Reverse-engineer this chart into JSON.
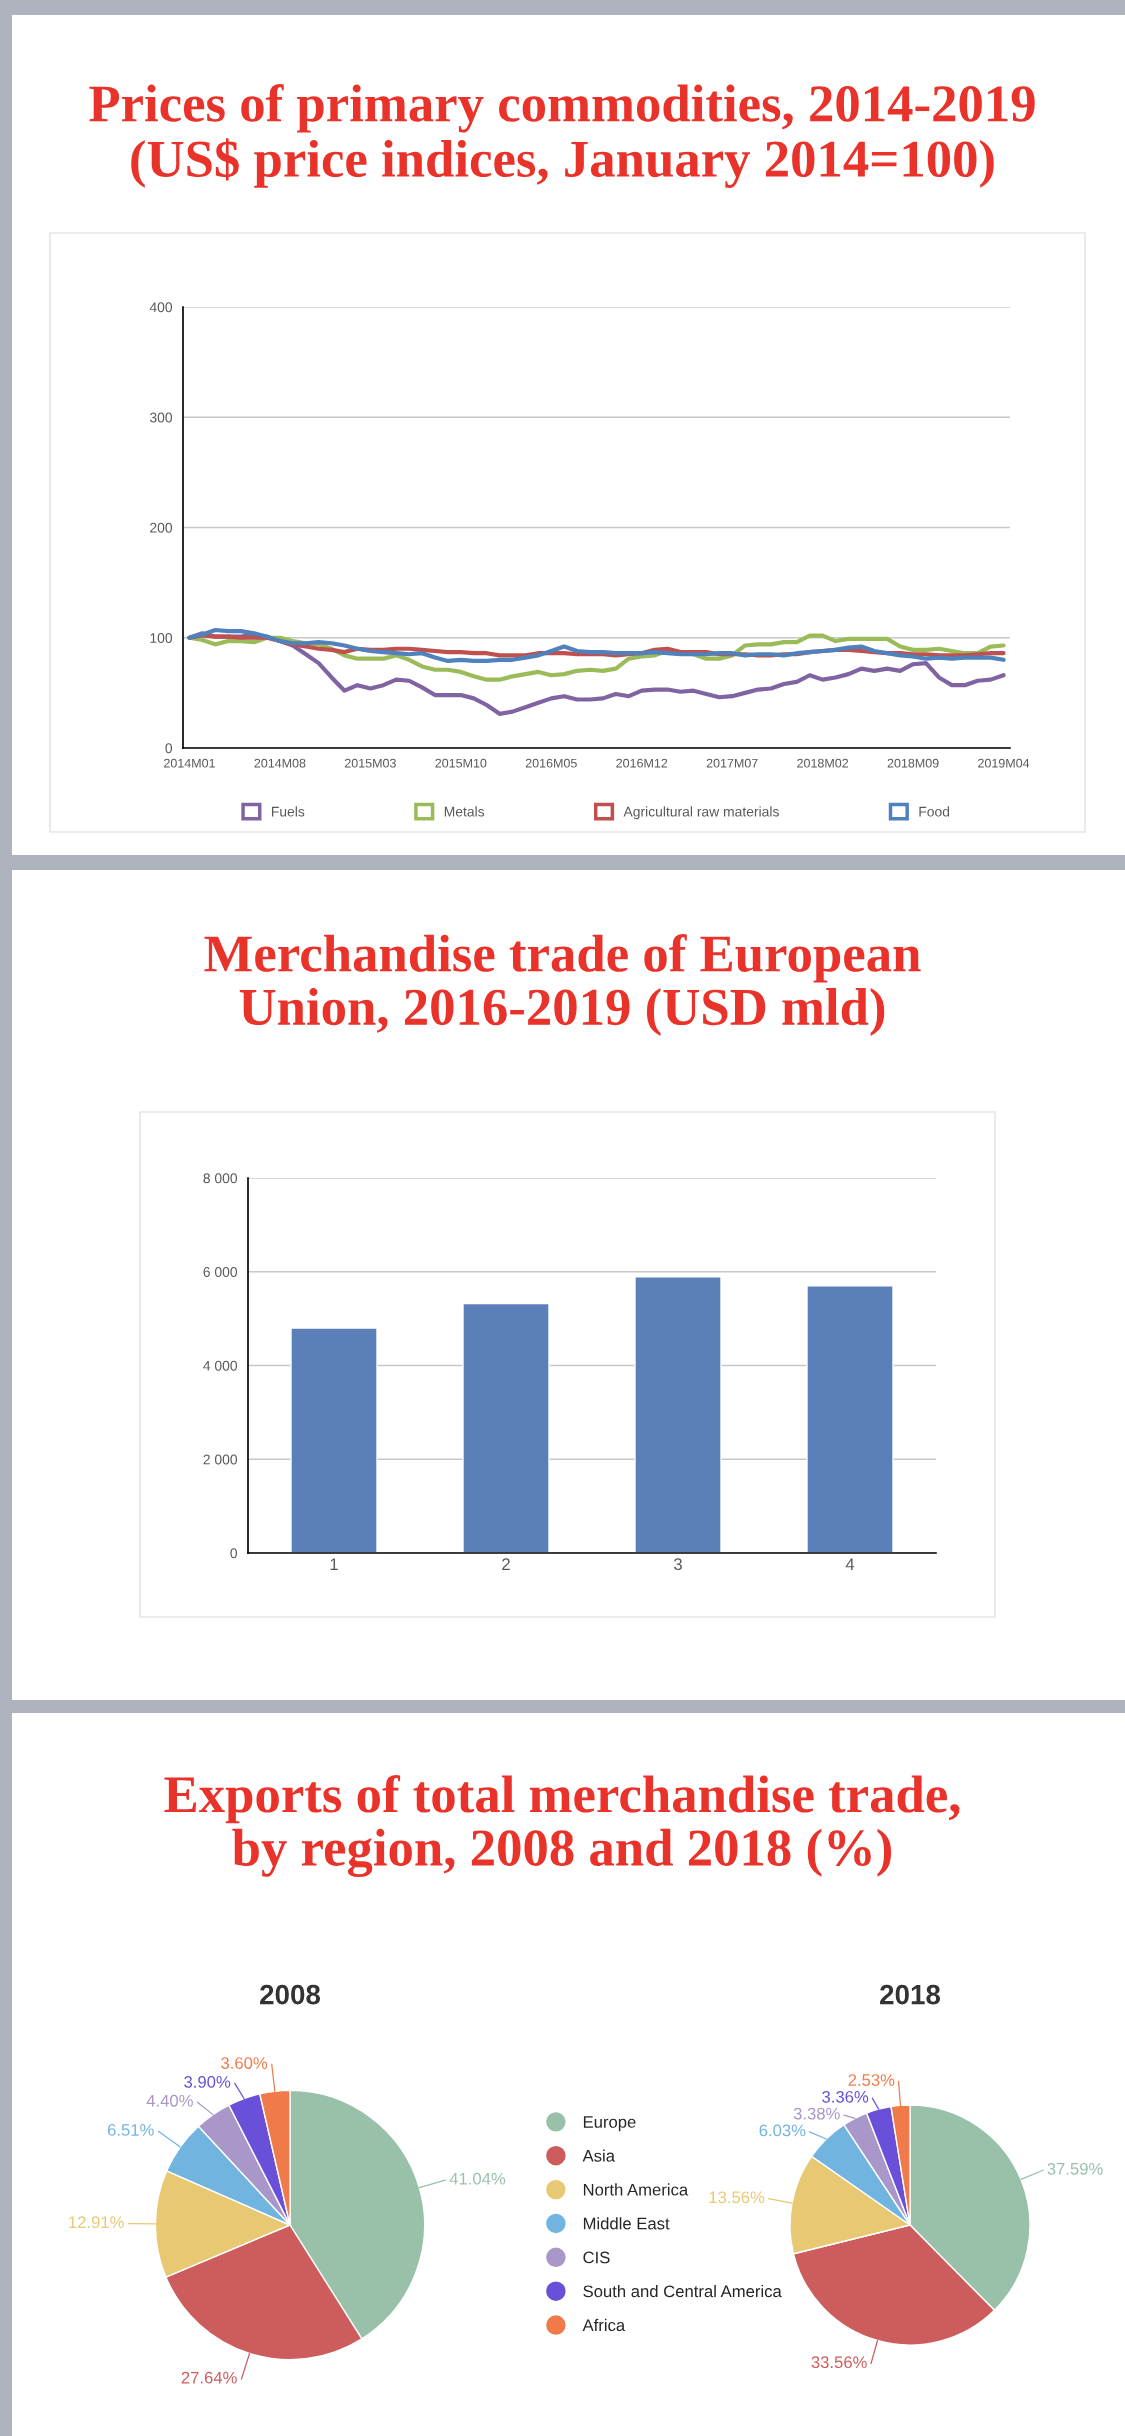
{
  "chart_data": [
    {
      "type": "line",
      "title": "Prices of primary commodities, 2014-2019\n(US$ price indices, January 2014=100)",
      "categories": [
        "2014M01",
        null,
        null,
        null,
        null,
        null,
        null,
        "2014M08",
        null,
        null,
        null,
        null,
        null,
        null,
        "2015M03",
        null,
        null,
        null,
        null,
        null,
        null,
        "2015M10",
        null,
        null,
        null,
        null,
        null,
        null,
        "2016M05",
        null,
        null,
        null,
        null,
        null,
        null,
        "2016M12",
        null,
        null,
        null,
        null,
        null,
        null,
        "2017M07",
        null,
        null,
        null,
        null,
        null,
        null,
        "2018M02",
        null,
        null,
        null,
        null,
        null,
        null,
        "2018M09",
        null,
        null,
        null,
        null,
        null,
        null,
        "2019M04"
      ],
      "series": [
        {
          "name": "Fuels",
          "color": "#8064a2",
          "values": [
            100,
            104,
            101,
            101,
            101,
            103,
            101,
            97,
            93,
            85,
            77,
            64,
            52,
            57,
            54,
            57,
            62,
            61,
            55,
            48,
            48,
            48,
            45,
            39,
            31,
            33,
            37,
            41,
            45,
            47,
            44,
            44,
            45,
            49,
            47,
            52,
            53,
            53,
            51,
            52,
            49,
            46,
            47,
            50,
            53,
            54,
            58,
            60,
            66,
            62,
            64,
            67,
            72,
            70,
            72,
            70,
            76,
            77,
            64,
            57,
            57,
            61,
            62,
            66
          ]
        },
        {
          "name": "Metals",
          "color": "#9bbb59",
          "values": [
            100,
            98,
            94,
            97,
            97,
            96,
            100,
            100,
            97,
            95,
            94,
            90,
            84,
            81,
            81,
            81,
            84,
            80,
            74,
            71,
            71,
            69,
            65,
            62,
            62,
            65,
            67,
            69,
            66,
            67,
            70,
            71,
            70,
            72,
            81,
            83,
            84,
            88,
            87,
            85,
            81,
            81,
            84,
            93,
            94,
            94,
            96,
            96,
            102,
            102,
            97,
            99,
            99,
            99,
            99,
            92,
            89,
            89,
            90,
            88,
            86,
            86,
            92,
            93
          ]
        },
        {
          "name": "Agricultural raw materials",
          "color": "#c0504d",
          "values": [
            100,
            102,
            101,
            101,
            100,
            100,
            100,
            97,
            94,
            92,
            90,
            89,
            87,
            90,
            89,
            89,
            90,
            90,
            89,
            88,
            87,
            87,
            86,
            86,
            84,
            84,
            84,
            86,
            86,
            86,
            85,
            85,
            85,
            84,
            85,
            86,
            89,
            90,
            87,
            87,
            87,
            85,
            85,
            85,
            84,
            84,
            85,
            85,
            87,
            88,
            89,
            89,
            88,
            87,
            86,
            86,
            85,
            85,
            84,
            84,
            84,
            85,
            86,
            86
          ]
        },
        {
          "name": "Food",
          "color": "#4f81bd",
          "values": [
            100,
            103,
            107,
            106,
            106,
            104,
            101,
            97,
            95,
            95,
            96,
            95,
            93,
            90,
            88,
            87,
            86,
            85,
            86,
            82,
            79,
            80,
            79,
            79,
            80,
            80,
            82,
            84,
            88,
            92,
            88,
            87,
            87,
            86,
            86,
            86,
            87,
            86,
            85,
            85,
            85,
            86,
            86,
            84,
            85,
            85,
            84,
            86,
            87,
            88,
            89,
            91,
            92,
            88,
            86,
            84,
            83,
            81,
            82,
            81,
            82,
            82,
            82,
            80
          ]
        }
      ],
      "ylim": [
        0,
        400
      ],
      "yticks": [
        0,
        100,
        200,
        300,
        400
      ],
      "grid": "y",
      "legend": "bottom"
    },
    {
      "type": "bar",
      "title": "Merchandise trade of European\nUnion, 2016-2019 (USD mld)",
      "categories": [
        "1",
        "2",
        "3",
        "4"
      ],
      "values": [
        4800,
        5320,
        5890,
        5700
      ],
      "color": "#5b7fb9",
      "ylim": [
        0,
        8000
      ],
      "yticks": [
        0,
        {
          "value": 2000,
          "label": "2 000"
        },
        {
          "value": 4000,
          "label": "4 000"
        },
        {
          "value": 6000,
          "label": "6 000"
        },
        {
          "value": 8000,
          "label": "8 000"
        }
      ],
      "grid": "y"
    },
    {
      "type": "pie",
      "title": "Exports of total merchandise trade,\nby region, 2008 and 2018 (%)",
      "subtitle": "2008",
      "categories": [
        "Europe",
        "Asia",
        "North America",
        "Middle East",
        "CIS",
        "South and Central America",
        "Africa"
      ],
      "values": [
        41.04,
        27.64,
        12.91,
        6.51,
        4.4,
        3.9,
        3.6
      ],
      "colors": [
        "#99c1a9",
        "#cd5c5c",
        "#e8c872",
        "#72b4e0",
        "#a997c9",
        "#6a50d8",
        "#f07a4a"
      ],
      "value_labels": [
        "41.04%",
        "27.64%",
        "12.91%",
        "6.51%",
        "4.40%",
        "3.90%",
        "3.60%"
      ],
      "legend": "right"
    },
    {
      "type": "pie",
      "subtitle": "2018",
      "categories": [
        null,
        null,
        null,
        null,
        null,
        null,
        null
      ],
      "values": [
        37.59,
        33.56,
        13.56,
        6.03,
        3.38,
        3.36,
        2.53
      ],
      "colors": [
        "#99c1a9",
        "#cd5c5c",
        "#e8c872",
        "#72b4e0",
        "#a997c9",
        "#6a50d8",
        "#f07a4a"
      ],
      "value_labels": [
        "37.59%",
        "33.56%",
        "13.56%",
        "6.03%",
        "3.38%",
        "3.36%",
        "2.53%"
      ]
    }
  ]
}
